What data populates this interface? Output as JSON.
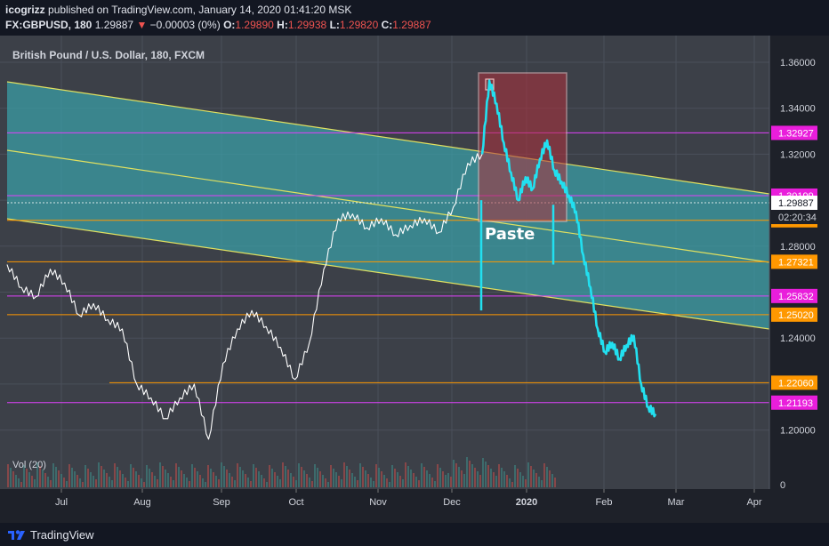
{
  "header": {
    "author": "icogrizz",
    "published_text": "published on TradingView.com, January 14, 2020 01:41:20 MSK",
    "symbol": "FX:GBPUSD, 180",
    "last": "1.29887",
    "change": "−0.00003 (0%)",
    "o_label": "O:",
    "o_value": "1.29890",
    "h_label": "H:",
    "h_value": "1.29938",
    "l_label": "L:",
    "l_value": "1.29820",
    "c_label": "C:",
    "c_value": "1.29887"
  },
  "footer": {
    "brand": "TradingView"
  },
  "colors": {
    "background": "#1e2129",
    "channel_fill": "#3aa0a8",
    "channel_line": "#e0e060",
    "price": "#ffffff",
    "projection": "#22e0f0",
    "box_fill": "#b0303c",
    "magenta_level": "#e040fb",
    "orange_level": "#ff9800",
    "label_magenta": "#e91edb",
    "label_orange": "#ff9800"
  },
  "chart_data": {
    "type": "line",
    "title": "British Pound / U.S. Dollar, 180, FXCM",
    "x_ticks": [
      "Jul",
      "Aug",
      "Sep",
      "Oct",
      "Nov",
      "Dec",
      "2020",
      "Feb",
      "Mar",
      "Apr"
    ],
    "y_ticks": [
      "1.36000",
      "1.34000",
      "1.32000",
      "1.30000",
      "1.28000",
      "1.26000",
      "1.24000",
      "1.22000",
      "1.20000"
    ],
    "ylim": [
      1.187,
      1.366
    ],
    "vol_label": "Vol (20)",
    "vol_tick": "0",
    "annotation": "Paste",
    "current_price_label": "1.29887",
    "countdown_label": "02:20:34",
    "levels": [
      {
        "value": 1.32927,
        "label": "1.32927",
        "color": "magenta"
      },
      {
        "value": 1.30199,
        "label": "1.30199",
        "color": "magenta"
      },
      {
        "value": 1.29123,
        "label": "1.29123",
        "color": "orange"
      },
      {
        "value": 1.27321,
        "label": "1.27321",
        "color": "orange"
      },
      {
        "value": 1.25832,
        "label": "1.25832",
        "color": "magenta"
      },
      {
        "value": 1.2502,
        "label": "1.25020",
        "color": "orange"
      },
      {
        "value": 1.2206,
        "label": "1.22060",
        "color": "orange"
      },
      {
        "value": 1.21193,
        "label": "1.21193",
        "color": "magenta"
      }
    ],
    "series": [
      {
        "kind": "price",
        "points": [
          [
            "Jun",
            1.272
          ],
          [
            "Jun",
            1.262
          ],
          [
            "Jul",
            1.258
          ],
          [
            "Jul",
            1.27
          ],
          [
            "Jul",
            1.264
          ],
          [
            "Jul",
            1.25
          ],
          [
            "Jul",
            1.255
          ],
          [
            "Jul",
            1.248
          ],
          [
            "Jul",
            1.244
          ],
          [
            "Aug",
            1.22
          ],
          [
            "Aug",
            1.214
          ],
          [
            "Aug",
            1.205
          ],
          [
            "Aug",
            1.214
          ],
          [
            "Aug",
            1.22
          ],
          [
            "Sep",
            1.196
          ],
          [
            "Sep",
            1.229
          ],
          [
            "Sep",
            1.244
          ],
          [
            "Sep",
            1.252
          ],
          [
            "Sep",
            1.245
          ],
          [
            "Oct",
            1.236
          ],
          [
            "Oct",
            1.222
          ],
          [
            "Oct",
            1.238
          ],
          [
            "Oct",
            1.27
          ],
          [
            "Oct",
            1.292
          ],
          [
            "Oct",
            1.294
          ],
          [
            "Nov",
            1.288
          ],
          [
            "Nov",
            1.292
          ],
          [
            "Nov",
            1.285
          ],
          [
            "Nov",
            1.289
          ],
          [
            "Nov",
            1.292
          ],
          [
            "Nov",
            1.286
          ],
          [
            "Dec",
            1.297
          ],
          [
            "Dec",
            1.316
          ],
          [
            "Dec",
            1.32
          ]
        ]
      },
      {
        "kind": "projection",
        "points": [
          [
            "Dec",
            1.32
          ],
          [
            "Dec",
            1.352
          ],
          [
            "Dec",
            1.342
          ],
          [
            "Dec",
            1.325
          ],
          [
            "Dec",
            1.312
          ],
          [
            "Dec",
            1.3
          ],
          [
            "Dec",
            1.31
          ],
          [
            "Dec",
            1.305
          ],
          [
            "2020",
            1.318
          ],
          [
            "2020",
            1.326
          ],
          [
            "2020",
            1.313
          ],
          [
            "2020",
            1.308
          ],
          [
            "2020",
            1.302
          ],
          [
            "2020",
            1.295
          ],
          [
            "2020",
            1.276
          ],
          [
            "2020",
            1.262
          ],
          [
            "2020",
            1.244
          ],
          [
            "Feb",
            1.234
          ],
          [
            "Feb",
            1.238
          ],
          [
            "Feb",
            1.231
          ],
          [
            "Feb",
            1.237
          ],
          [
            "Feb",
            1.241
          ],
          [
            "Feb",
            1.22
          ],
          [
            "Feb",
            1.21
          ],
          [
            "Feb",
            1.207
          ]
        ]
      }
    ],
    "legend": []
  }
}
